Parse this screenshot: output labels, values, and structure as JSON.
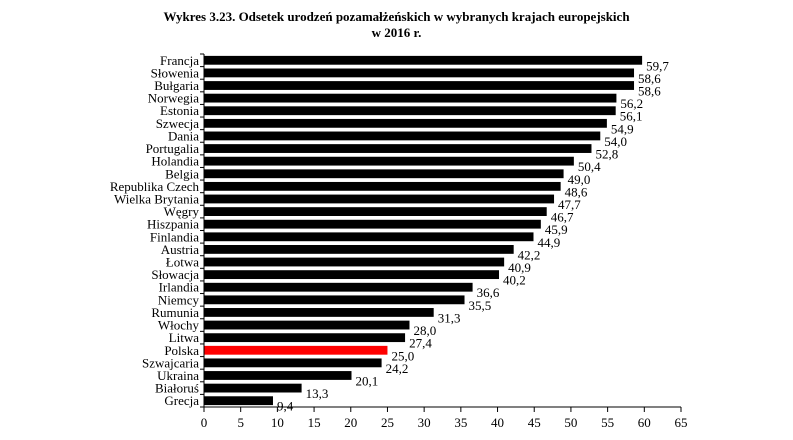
{
  "chart_data": {
    "type": "bar",
    "orientation": "horizontal",
    "title_lines": [
      "Wykres 3.23. Odsetek urodzeń pozamałżeńskich w wybranych krajach europejskich",
      "w 2016 r."
    ],
    "categories": [
      "Francja",
      "Słowenia",
      "Bułgaria",
      "Norwegia",
      "Estonia",
      "Szwecja",
      "Dania",
      "Portugalia",
      "Holandia",
      "Belgia",
      "Republika Czech",
      "Wielka Brytania",
      "Węgry",
      "Hiszpania",
      "Finlandia",
      "Austria",
      "Łotwa",
      "Słowacja",
      "Irlandia",
      "Niemcy",
      "Rumunia",
      "Włochy",
      "Litwa",
      "Polska",
      "Szwajcaria",
      "Ukraina",
      "Białoruś",
      "Grecja"
    ],
    "values": [
      59.7,
      58.6,
      58.6,
      56.2,
      56.1,
      54.9,
      54.0,
      52.8,
      50.4,
      49.0,
      48.6,
      47.7,
      46.7,
      45.9,
      44.9,
      42.2,
      40.9,
      40.2,
      36.6,
      35.5,
      31.3,
      28.0,
      27.4,
      25.0,
      24.2,
      20.1,
      13.3,
      9.4
    ],
    "value_labels": [
      "59,7",
      "58,6",
      "58,6",
      "56,2",
      "56,1",
      "54,9",
      "54,0",
      "52,8",
      "50,4",
      "49,0",
      "48,6",
      "47,7",
      "46,7",
      "45,9",
      "44,9",
      "42,2",
      "40,9",
      "40,2",
      "36,6",
      "35,5",
      "31,3",
      "28,0",
      "27,4",
      "25,0",
      "24,2",
      "20,1",
      "13,3",
      "9,4"
    ],
    "highlight_category": "Polska",
    "colors": {
      "bar": "#000000",
      "highlight": "#ff0000"
    },
    "xlim": [
      0,
      65
    ],
    "xticks": [
      0,
      5,
      10,
      15,
      20,
      25,
      30,
      35,
      40,
      45,
      50,
      55,
      60,
      65
    ],
    "xlabel": "",
    "ylabel": "",
    "grid": false,
    "legend": "none"
  }
}
